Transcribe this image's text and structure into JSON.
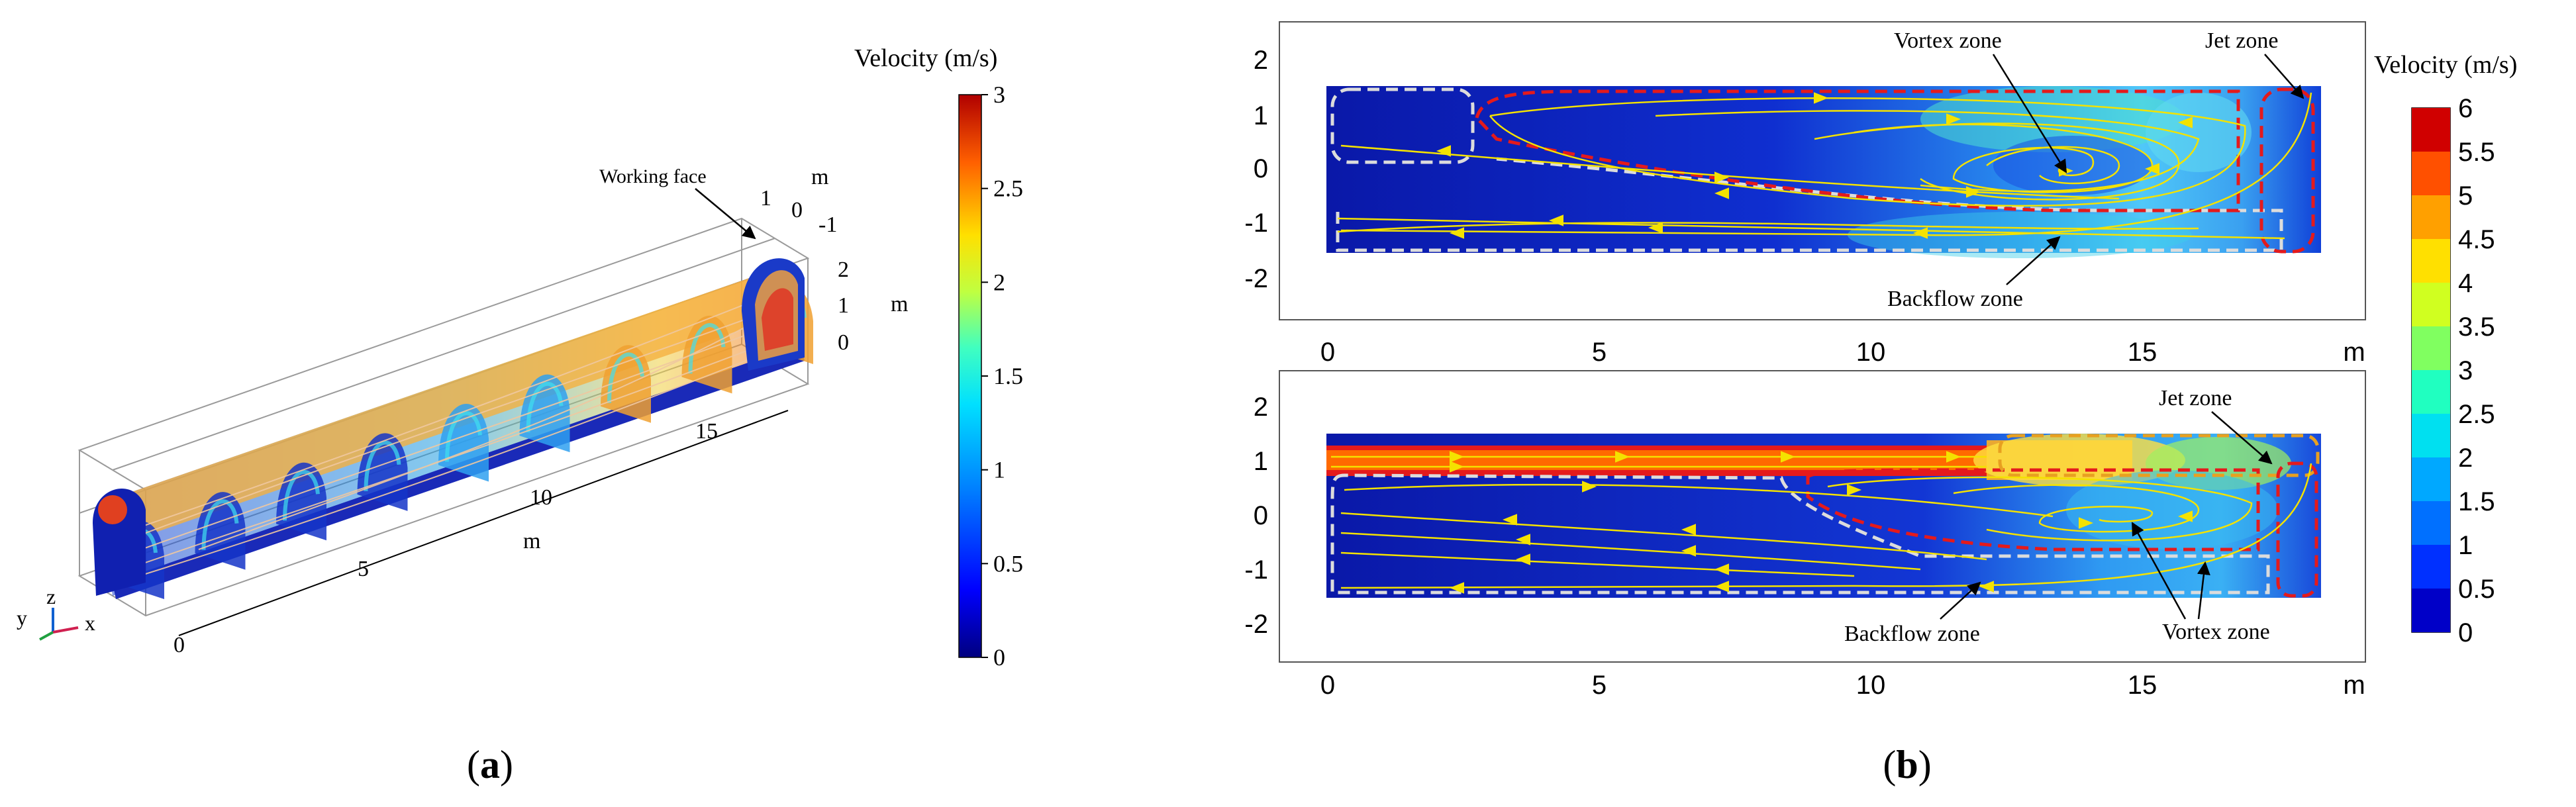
{
  "panel_a": {
    "label_prefix": "(",
    "label_letter": "a",
    "label_suffix": ")",
    "colorbar_title": "Velocity (m/s)",
    "colorbar_ticks": [
      "3",
      "2.5",
      "2",
      "1.5",
      "1",
      "0.5",
      "0"
    ],
    "annotation": "Working face",
    "axis_length_ticks": [
      "0",
      "5",
      "10",
      "15"
    ],
    "axis_length_unit": "m",
    "axis_width_ticks": [
      "1",
      "0",
      "-1"
    ],
    "axis_width_unit": "m",
    "axis_height_ticks": [
      "2",
      "1",
      "0"
    ],
    "axis_height_unit": "m",
    "triad": {
      "x": "x",
      "y": "y",
      "z": "z"
    }
  },
  "panel_b": {
    "label_prefix": "(",
    "label_letter": "b",
    "label_suffix": ")",
    "colorbar_title": "Velocity (m/s)",
    "colorbar_ticks": [
      "6",
      "5.5",
      "5",
      "4.5",
      "4",
      "3.5",
      "3",
      "2.5",
      "2",
      "1.5",
      "1",
      "0.5",
      "0"
    ],
    "x_unit": "m",
    "top_annotations": {
      "vortex": "Vortex zone",
      "jet": "Jet zone",
      "backflow": "Backflow zone"
    },
    "bottom_annotations": {
      "vortex": "Vortex zone",
      "jet": "Jet zone",
      "backflow": "Backflow zone"
    }
  },
  "chart_data": [
    {
      "type": "heatmap",
      "title": "",
      "description_type": "3d-velocity-field",
      "colorbar": {
        "label": "Velocity (m/s)",
        "min": 0,
        "max": 3
      },
      "axes": {
        "length_range": [
          0,
          18
        ],
        "width_range": [
          -1,
          1
        ],
        "height_range": [
          0,
          2
        ],
        "unit": "m"
      }
    },
    {
      "type": "heatmap",
      "title": "",
      "x": {
        "ticks": [
          0,
          5,
          10,
          15
        ],
        "range": [
          0,
          18.5
        ],
        "unit": "m"
      },
      "y": {
        "ticks": [
          2,
          1,
          0,
          -1,
          -2
        ],
        "range": [
          -2.6,
          2.6
        ]
      },
      "colorbar": {
        "label": "Velocity (m/s)",
        "min": 0,
        "max": 6
      },
      "zones": [
        "Vortex zone",
        "Jet zone",
        "Backflow zone"
      ]
    },
    {
      "type": "heatmap",
      "title": "",
      "x": {
        "ticks": [
          0,
          5,
          10,
          15
        ],
        "range": [
          0,
          18.5
        ],
        "unit": "m"
      },
      "y": {
        "ticks": [
          2,
          1,
          0,
          -1,
          -2
        ],
        "range": [
          -2.6,
          2.6
        ]
      },
      "colorbar": {
        "label": "Velocity (m/s)",
        "min": 0,
        "max": 6
      },
      "zones": [
        "Jet zone",
        "Backflow zone",
        "Vortex zone"
      ]
    }
  ]
}
